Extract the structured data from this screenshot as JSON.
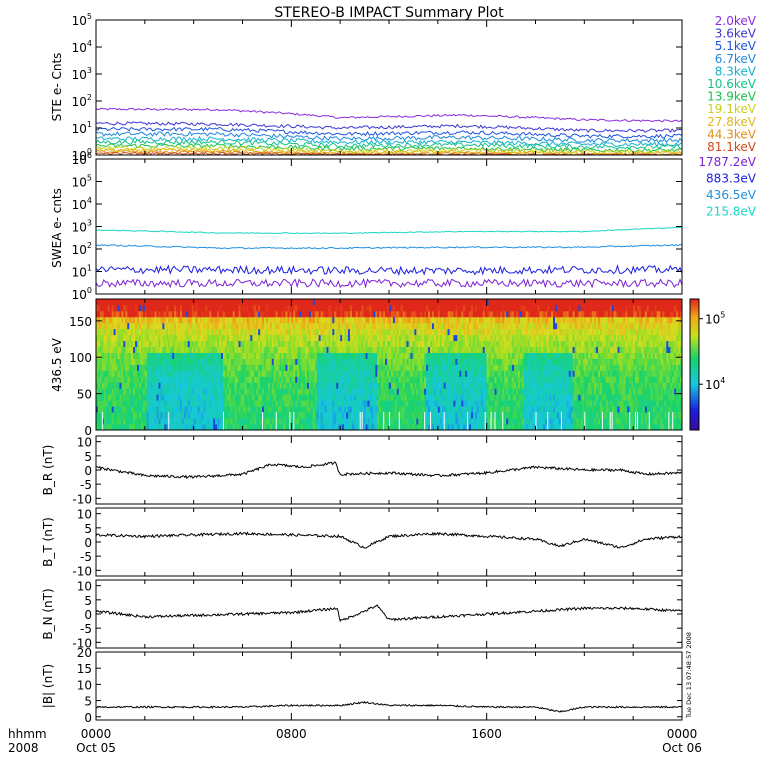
{
  "title": "STEREO-B IMPACT Summary Plot",
  "x_axis": {
    "year_label": "2008",
    "hhmm_label": "hhmm",
    "ticks": [
      "0000",
      "0800",
      "1600",
      "0000"
    ],
    "dates": [
      "Oct 05",
      "",
      "",
      "Oct 06"
    ]
  },
  "side_text": "Tue Dec 13 07:48:57 2008",
  "colors": {
    "ste": [
      "#8a2be2",
      "#3f35d6",
      "#1f54e0",
      "#1e88e0",
      "#18b3d0",
      "#16c08c",
      "#19c24a",
      "#c9d21e",
      "#e0b81c",
      "#e09018",
      "#d04a1a"
    ],
    "swea": [
      "#7b22d6",
      "#1a1fe0",
      "#1f8fe0",
      "#19d6c4"
    ]
  },
  "chart_data": [
    {
      "type": "line",
      "ylabel": "STE e- Cnts",
      "yscale": "log",
      "ylim": [
        1,
        100000
      ],
      "yticks": [
        "10^0",
        "10^1",
        "10^2",
        "10^3",
        "10^4",
        "10^5"
      ],
      "x": [
        0,
        5,
        10,
        15,
        20,
        24
      ],
      "series": [
        {
          "name": "2.0keV",
          "values": [
            50,
            48,
            24,
            30,
            20,
            18
          ]
        },
        {
          "name": "3.6keV",
          "values": [
            15,
            14,
            10,
            12,
            8,
            8
          ]
        },
        {
          "name": "5.1keV",
          "values": [
            9,
            9,
            6,
            7,
            5,
            5
          ]
        },
        {
          "name": "6.7keV",
          "values": [
            6,
            6,
            4,
            4.5,
            3.5,
            3.5
          ]
        },
        {
          "name": "8.3keV",
          "values": [
            4,
            4,
            3,
            3,
            2.5,
            2.5
          ]
        },
        {
          "name": "10.6keV",
          "values": [
            3,
            3,
            2.2,
            2.4,
            2,
            2
          ]
        },
        {
          "name": "13.9keV",
          "values": [
            2.2,
            2.2,
            1.7,
            1.8,
            1.5,
            1.5
          ]
        },
        {
          "name": "19.1keV",
          "values": [
            1.8,
            1.8,
            1.4,
            1.5,
            1.3,
            1.3
          ]
        },
        {
          "name": "27.8keV",
          "values": [
            1.5,
            1.5,
            1.2,
            1.3,
            1.15,
            1.15
          ]
        },
        {
          "name": "44.3keV",
          "values": [
            1.3,
            1.3,
            1.1,
            1.15,
            1.05,
            1.05
          ]
        },
        {
          "name": "81.1keV",
          "values": [
            1.15,
            1.15,
            1.05,
            1.05,
            1.0,
            1.0
          ]
        }
      ]
    },
    {
      "type": "line",
      "ylabel": "SWEA e- cnts",
      "yscale": "log",
      "ylim": [
        1,
        1000000
      ],
      "yticks": [
        "10^0",
        "10^1",
        "10^2",
        "10^3",
        "10^4",
        "10^5",
        "10^6"
      ],
      "x": [
        0,
        5,
        10,
        15,
        20,
        24
      ],
      "series": [
        {
          "name": "1787.2eV",
          "values": [
            3,
            3,
            3,
            3,
            3,
            3
          ]
        },
        {
          "name": "883.3eV",
          "values": [
            12,
            12,
            11,
            11,
            12,
            12
          ]
        },
        {
          "name": "436.5eV",
          "values": [
            150,
            110,
            110,
            120,
            120,
            150
          ]
        },
        {
          "name": "215.8eV",
          "values": [
            700,
            520,
            500,
            600,
            600,
            900
          ]
        }
      ]
    },
    {
      "type": "heatmap",
      "ylabel": "436.5 eV",
      "ylim": [
        0,
        180
      ],
      "yticks": [
        0,
        50,
        100,
        150
      ],
      "colorbar_ticks": [
        "10^4",
        "10^5"
      ],
      "colorbar_range": [
        2000,
        200000
      ]
    },
    {
      "type": "line",
      "ylabel": "B_R (nT)",
      "ylim": [
        -12,
        12
      ],
      "yticks": [
        -10,
        -5,
        0,
        5,
        10
      ],
      "x": [
        0,
        2,
        4,
        6,
        7.2,
        8.5,
        9.8,
        10,
        12,
        14,
        16,
        18,
        20,
        21.5,
        22.5,
        24
      ],
      "values": [
        1,
        -2,
        -2.5,
        -1.5,
        2,
        1,
        2.5,
        -1.5,
        -1,
        -2,
        -1,
        1,
        0,
        0,
        -1.5,
        -1
      ]
    },
    {
      "type": "line",
      "ylabel": "B_T (nT)",
      "ylim": [
        -12,
        12
      ],
      "yticks": [
        -10,
        -5,
        0,
        5,
        10
      ],
      "x": [
        0,
        2,
        4,
        6,
        8,
        10,
        11,
        12,
        14,
        16,
        18,
        19,
        20,
        21.5,
        22.5,
        24
      ],
      "values": [
        2.5,
        2,
        2.5,
        3,
        2.5,
        2,
        -2,
        2,
        3,
        2,
        1,
        -1.5,
        1,
        -2,
        1,
        2
      ]
    },
    {
      "type": "line",
      "ylabel": "B_N (nT)",
      "ylim": [
        -12,
        12
      ],
      "yticks": [
        -10,
        -5,
        0,
        5,
        10
      ],
      "x": [
        0,
        2,
        4,
        6,
        8,
        9.9,
        10,
        11,
        11.5,
        12,
        14,
        16,
        18,
        20,
        22,
        24
      ],
      "values": [
        1,
        -1,
        -0.5,
        0,
        0.5,
        2,
        -2.5,
        1,
        3,
        -2,
        -1,
        0,
        1,
        2,
        2,
        1
      ]
    },
    {
      "type": "line",
      "ylabel": "|B| (nT)",
      "ylim": [
        -1,
        20
      ],
      "yticks": [
        0,
        5,
        10,
        15,
        20
      ],
      "x": [
        0,
        2,
        4,
        6,
        8,
        10,
        11,
        12,
        14,
        16,
        18,
        19,
        20,
        22,
        24
      ],
      "values": [
        3,
        3,
        3,
        3,
        3.5,
        3.5,
        4.5,
        3.5,
        3.5,
        3,
        3,
        1.5,
        3,
        3,
        3
      ]
    }
  ],
  "legend": {
    "ste": [
      "2.0keV",
      "3.6keV",
      "5.1keV",
      "6.7keV",
      "8.3keV",
      "10.6keV",
      "13.9keV",
      "19.1keV",
      "27.8keV",
      "44.3keV",
      "81.1keV"
    ],
    "swea": [
      "1787.2eV",
      "883.3eV",
      "436.5eV",
      "215.8eV"
    ]
  }
}
